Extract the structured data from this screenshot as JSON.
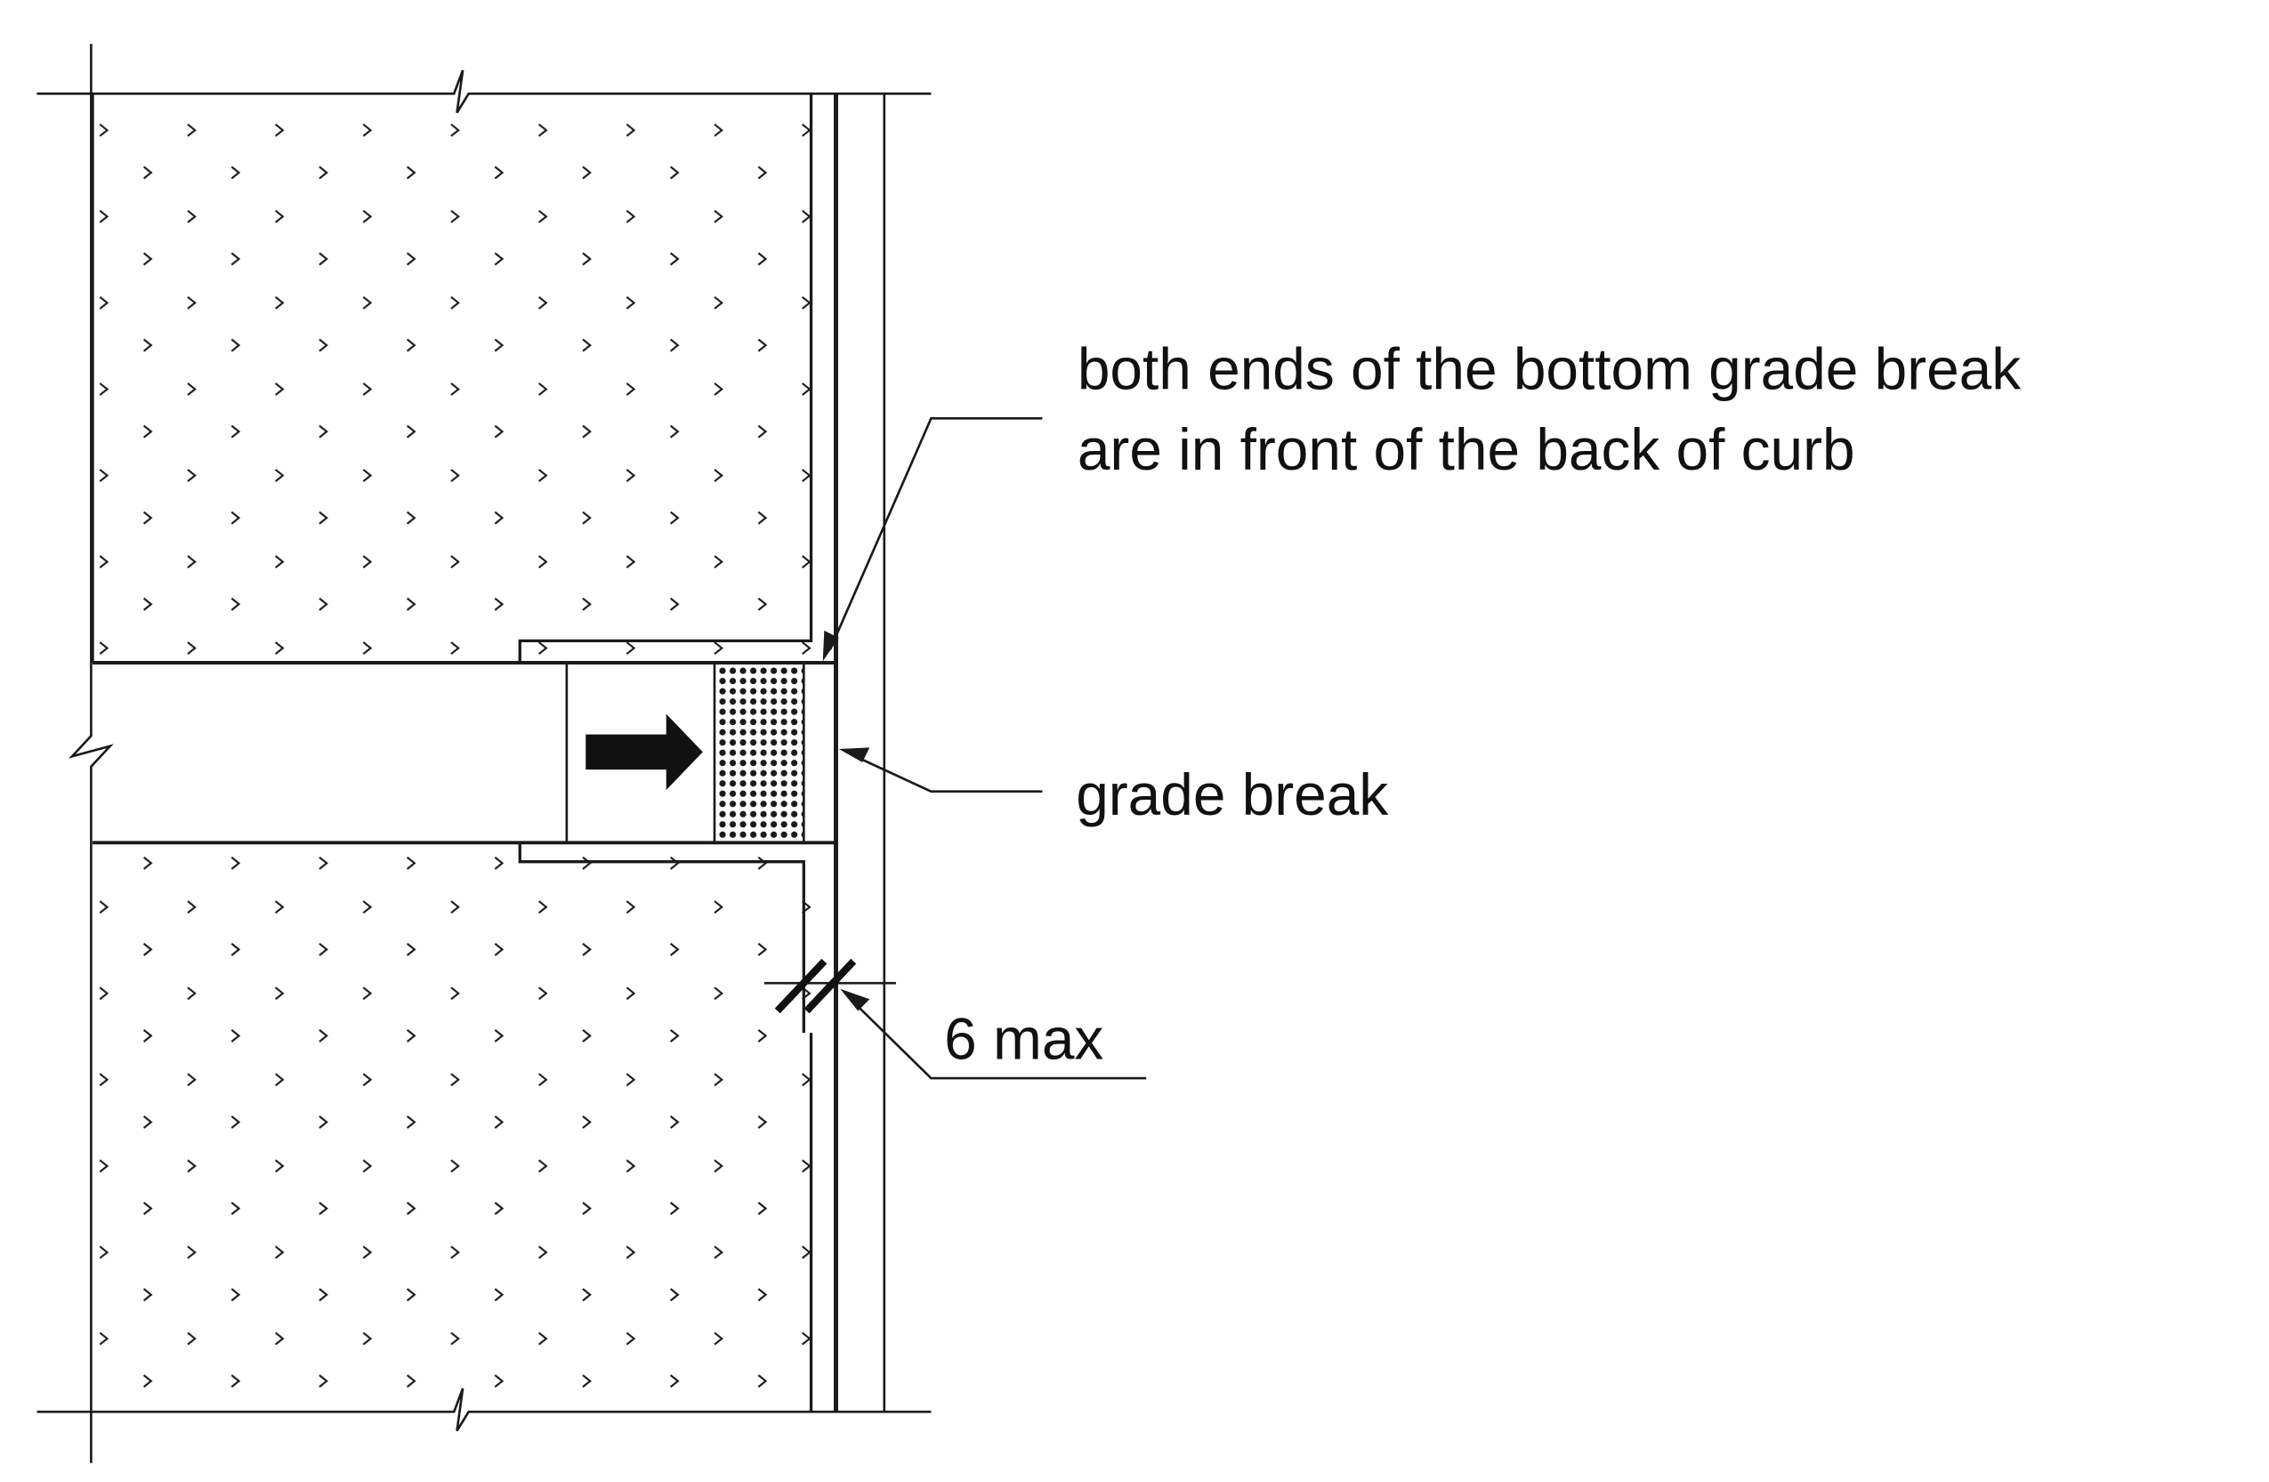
{
  "diagram": {
    "callout_bottom_grade_break": {
      "line1": "both ends of the bottom grade break",
      "line2": "are in front of the back of curb"
    },
    "callout_grade_break": "grade break",
    "callout_flare_max": "6 max"
  },
  "colors": {
    "ink": "#1a1a1a",
    "background": "#ffffff"
  },
  "icons": {
    "travel_direction": "right-arrow-icon",
    "detectable_warning": "dot-pattern-icon",
    "break_line": "break-line-icon",
    "dimension_tick": "dimension-tick-icon"
  }
}
